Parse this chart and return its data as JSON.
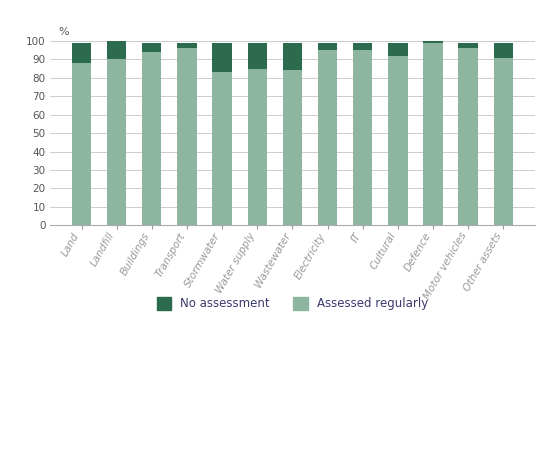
{
  "categories": [
    "Land",
    "Landfill",
    "Buildings",
    "Transport",
    "Stormwater",
    "Water supply",
    "Wastewater",
    "Electricity",
    "IT",
    "Cultural",
    "Defence",
    "Motor vehicles",
    "Other assets"
  ],
  "assessed_regularly": [
    88,
    90,
    94,
    96,
    83,
    85,
    84,
    95,
    95,
    92,
    99,
    96,
    91
  ],
  "no_assessment": [
    11,
    10,
    5,
    3,
    16,
    14,
    15,
    4,
    4,
    7,
    1,
    3,
    8
  ],
  "color_assessed": "#8db5a0",
  "color_no_assessment": "#2d6b4f",
  "ylim": [
    0,
    100
  ],
  "yticks": [
    0,
    10,
    20,
    30,
    40,
    50,
    60,
    70,
    80,
    90,
    100
  ],
  "legend_labels": [
    "No assessment",
    "Assessed regularly"
  ],
  "bar_width": 0.55,
  "grid_color": "#cccccc",
  "background_color": "#ffffff",
  "tick_label_color": "#c0622b",
  "legend_text_color": "#3a3a6e",
  "ylabel_text": "%",
  "label_fontsize": 7.5,
  "legend_fontsize": 8.5
}
